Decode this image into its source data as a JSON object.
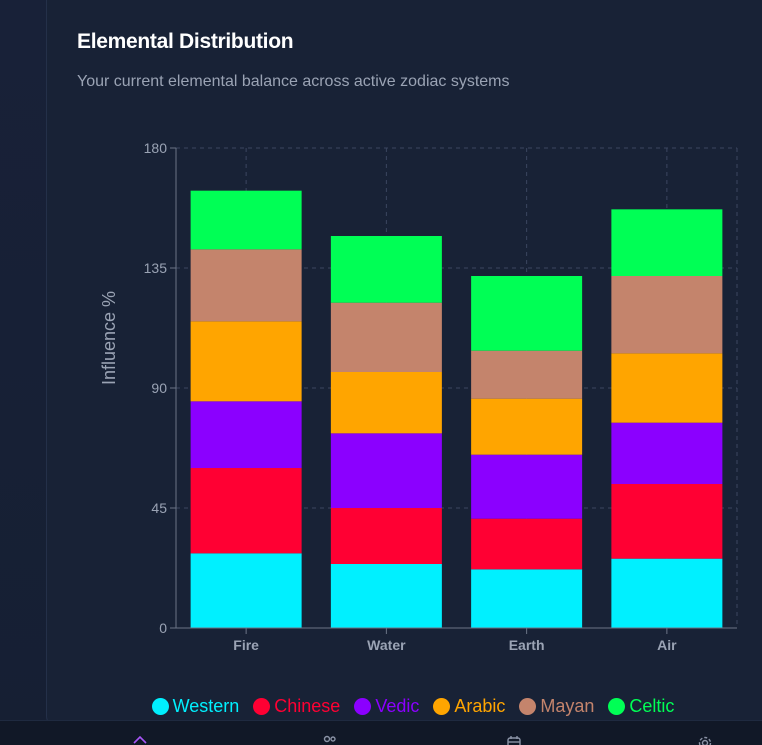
{
  "card": {
    "title": "Elemental Distribution",
    "subtitle": "Your current elemental balance across active zodiac systems"
  },
  "chart_data": {
    "type": "bar",
    "stacked": true,
    "categories": [
      "Fire",
      "Water",
      "Earth",
      "Air"
    ],
    "ylabel": "Influence %",
    "ylim": [
      0,
      180
    ],
    "yticks": [
      0,
      45,
      90,
      135,
      180
    ],
    "grid": true,
    "legend_position": "bottom",
    "series": [
      {
        "name": "Western",
        "color": "#00f0ff",
        "values": [
          28,
          24,
          22,
          26
        ]
      },
      {
        "name": "Chinese",
        "color": "#ff0033",
        "values": [
          32,
          21,
          19,
          28
        ]
      },
      {
        "name": "Vedic",
        "color": "#8b00ff",
        "values": [
          25,
          28,
          24,
          23
        ]
      },
      {
        "name": "Arabic",
        "color": "#ffa500",
        "values": [
          30,
          23,
          21,
          26
        ]
      },
      {
        "name": "Mayan",
        "color": "#c4846c",
        "values": [
          27,
          26,
          18,
          29
        ]
      },
      {
        "name": "Celtic",
        "color": "#00ff55",
        "values": [
          22,
          25,
          28,
          25
        ]
      }
    ]
  },
  "nav": {
    "icons": [
      "home-icon",
      "users-icon",
      "calendar-icon",
      "settings-icon"
    ]
  }
}
